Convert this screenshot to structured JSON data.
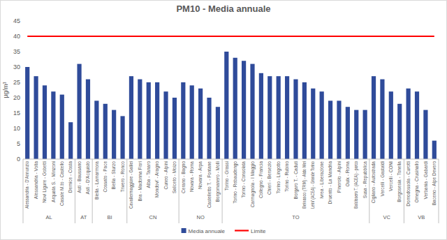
{
  "chart_data": {
    "type": "bar",
    "title": "PM10 - Media annuale",
    "y_label": "µg/m³",
    "categories": [
      "Alessandria - D'Annunzio",
      "Alessandria - Volta",
      "Novi Ligure - Gobetti",
      "Arquata S. - Minzoni",
      "Casale M.to - Castello",
      "Dernice - Costa",
      "Asti - Baussano",
      "Asti - D'Acquisto",
      "Biella - Lamarmora",
      "Cossato - Pace",
      "Biella - Sturzo",
      "Trivero - Ronco",
      "Cavallermaggiore - Galilei",
      "Bra - Madonna Fiori",
      "Alba - Tanaro",
      "Mondovi' - Aragno",
      "Cuneo - Alpini",
      "Saliceto - Moizo",
      "Cerano - Bagno",
      "Novara - Roma",
      "Novara - Arpa",
      "Castelletto T. - Fontane",
      "Borgomanero - Molli",
      "Torino - Grassi",
      "Torino - Rebaudengo",
      "Torino - Consolata",
      "Carmagnola - I Maggio",
      "Collegno - Francia",
      "Chieri - Bersezio",
      "Torino - Lingotto",
      "Torino - Rubino",
      "Borgaro T. - Caduti",
      "Beinasco (TRM) - Aldo Mei",
      "Leini' (ACEA) - Grande Torino",
      "Ivrea - Liberazione",
      "Druento - La Mandria",
      "Pinerolo - Alpini",
      "Oulx - Roma",
      "Baldissero T. (ACEA) - parco",
      "Susa - Repubblica",
      "Cigliano - Autostrada",
      "Vercelli - Gastaldi",
      "Vercelli - CONI",
      "Borgosesia - Tonella",
      "Domodossola - Curotti",
      "Omegna - Crusinallo",
      "Verbania - Gabardi",
      "Baceno - Alpe Devero"
    ],
    "groups": [
      {
        "label": "AL",
        "size": 6
      },
      {
        "label": "AT",
        "size": 2
      },
      {
        "label": "BI",
        "size": 4
      },
      {
        "label": "CN",
        "size": 6
      },
      {
        "label": "NO",
        "size": 5
      },
      {
        "label": "TO",
        "size": 17
      },
      {
        "label": "VC",
        "size": 4
      },
      {
        "label": "VB",
        "size": 4
      }
    ],
    "series": [
      {
        "name": "Media annuale",
        "type": "bar",
        "color": "#2f4b9a",
        "values": [
          30,
          27,
          24,
          22,
          21,
          12,
          31,
          26,
          19,
          18,
          16,
          14,
          27,
          26,
          25,
          25,
          22,
          20,
          25,
          24,
          23,
          20,
          17,
          35,
          33,
          32,
          31,
          28,
          27,
          27,
          27,
          26,
          25,
          23,
          22,
          19,
          19,
          17,
          16,
          16,
          27,
          26,
          22,
          18,
          23,
          22,
          16,
          6
        ]
      },
      {
        "name": "Limite",
        "type": "line",
        "color": "#ff0000",
        "values": [
          40,
          40,
          40,
          40,
          40,
          40,
          40,
          40,
          40,
          40,
          40,
          40,
          40,
          40,
          40,
          40,
          40,
          40,
          40,
          40,
          40,
          40,
          40,
          40,
          40,
          40,
          40,
          40,
          40,
          40,
          40,
          40,
          40,
          40,
          40,
          40,
          40,
          40,
          40,
          40,
          40,
          40,
          40,
          40,
          40,
          40,
          40,
          40
        ]
      }
    ],
    "ylim": [
      0,
      45
    ],
    "yticks": [
      0,
      5,
      10,
      15,
      20,
      25,
      30,
      35,
      40,
      45
    ],
    "grid": false,
    "legend": "bottom"
  }
}
